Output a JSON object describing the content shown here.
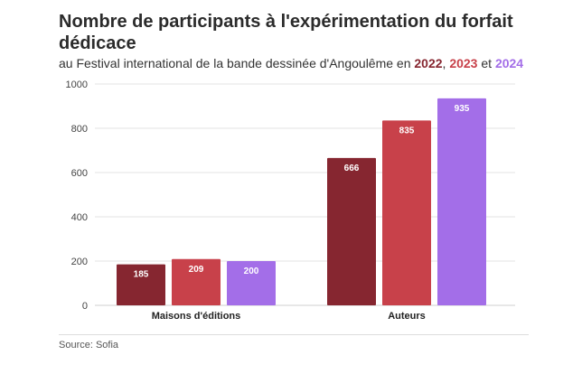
{
  "title": "Nombre de participants à l'expérimentation du forfait dédicace",
  "subtitle": {
    "prefix": "au Festival international de la bande dessinée d'Angoulême en ",
    "sep1": ", ",
    "sep2": " et "
  },
  "source": "Source: Sofia",
  "colors": {
    "2022": "#862630",
    "2023": "#c8414a",
    "2024": "#a36ee8"
  },
  "chart_data": {
    "type": "bar",
    "categories": [
      "Maisons d'éditions",
      "Auteurs"
    ],
    "series": [
      {
        "name": "2022",
        "values": [
          185,
          666
        ]
      },
      {
        "name": "2023",
        "values": [
          209,
          835
        ]
      },
      {
        "name": "2024",
        "values": [
          200,
          935
        ]
      }
    ],
    "ylim": [
      0,
      1000
    ],
    "yticks": [
      0,
      200,
      400,
      600,
      800,
      1000
    ],
    "grid": true,
    "legend": "subtitle"
  }
}
